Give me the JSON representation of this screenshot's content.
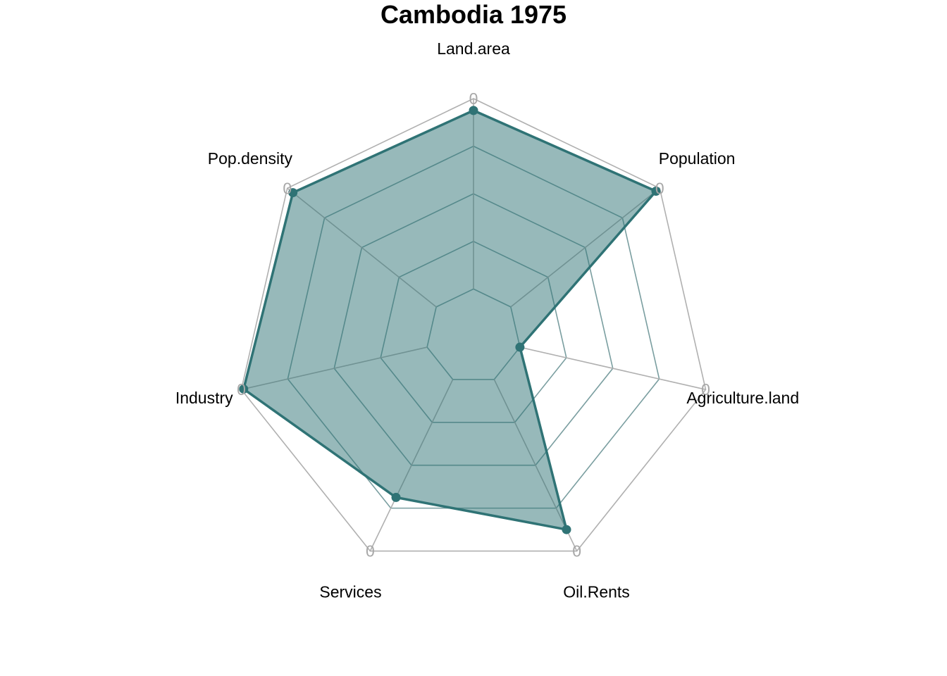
{
  "chart_data": {
    "type": "radar",
    "title": "Cambodia 1975",
    "axes": [
      "Land.area",
      "Population",
      "Agriculture.land",
      "Oil.Rents",
      "Services",
      "Industry",
      "Pop.density"
    ],
    "axis_max_labels": [
      "0",
      "0",
      "0",
      "0",
      "0",
      "0",
      "0"
    ],
    "grid_levels": 5,
    "range": [
      0,
      1
    ],
    "series": [
      {
        "values": [
          0.95,
          0.98,
          0.2,
          0.9,
          0.75,
          0.99,
          0.97
        ]
      }
    ],
    "colors": {
      "line": "#2f7375",
      "fill": "#2f7375",
      "fill_opacity": 0.5,
      "outer_grid": "#b0b0b0",
      "inner_grid": "#7a9ea0",
      "axis_label": "#000000",
      "axis_max_label": "#a8a8a8"
    },
    "grid": true,
    "legend": "none"
  }
}
